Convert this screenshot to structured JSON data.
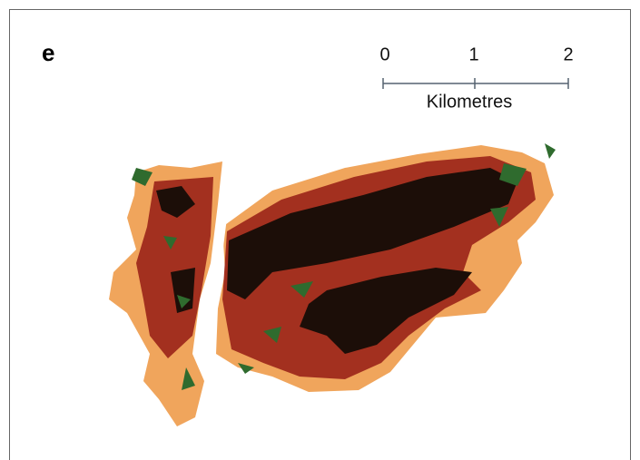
{
  "panel_label": "e",
  "scale_bar": {
    "ticks": [
      "0",
      "1",
      "2"
    ],
    "unit": "Kilometres"
  }
}
